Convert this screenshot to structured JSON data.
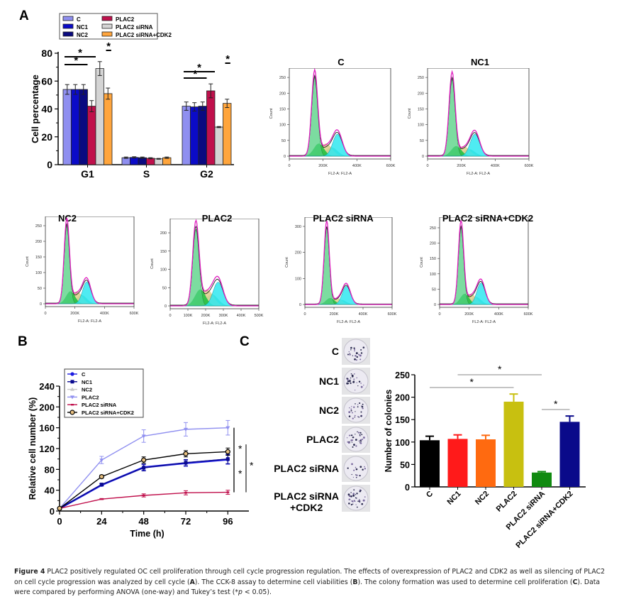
{
  "panels": {
    "A": "A",
    "B": "B",
    "C": "C"
  },
  "chart_data": [
    {
      "id": "A-bar",
      "type": "bar",
      "title": "",
      "xlabel": "",
      "ylabel": "Cell percentage",
      "ylim": [
        0,
        80
      ],
      "yticks": [
        0,
        20,
        40,
        60,
        80
      ],
      "categories": [
        "G1",
        "S",
        "G2"
      ],
      "legend_position": "top-left",
      "series": [
        {
          "name": "C",
          "color": "#8f8ff0",
          "values": [
            54,
            5,
            42
          ],
          "errors": [
            3.5,
            0.5,
            3
          ]
        },
        {
          "name": "NC1",
          "color": "#0b0bc8",
          "values": [
            54,
            5.2,
            41.5
          ],
          "errors": [
            3.5,
            0.5,
            3
          ]
        },
        {
          "name": "NC2",
          "color": "#0a0a80",
          "values": [
            54,
            5,
            42
          ],
          "errors": [
            3.5,
            0.5,
            3
          ]
        },
        {
          "name": "PLAC2",
          "color": "#c0104c",
          "values": [
            42,
            4.6,
            53
          ],
          "errors": [
            4,
            0.4,
            5
          ]
        },
        {
          "name": "PLAC2 siRNA",
          "color": "#d4d4d4",
          "values": [
            69,
            4.2,
            27
          ],
          "errors": [
            5,
            0.3,
            0.4
          ]
        },
        {
          "name": "PLAC2 siRNA+CDK2",
          "color": "#ffa53c",
          "values": [
            51,
            5,
            44
          ],
          "errors": [
            4,
            0.5,
            3
          ]
        }
      ],
      "significance": [
        {
          "category": "G1",
          "from": "C",
          "to": "PLAC2",
          "label": "*"
        },
        {
          "category": "G1",
          "from": "C",
          "to": "PLAC2 siRNA",
          "label": "*"
        },
        {
          "category": "G1",
          "from": "PLAC2 siRNA+CDK2",
          "to": "PLAC2 siRNA+CDK2",
          "label": "*"
        },
        {
          "category": "G2",
          "from": "C",
          "to": "PLAC2",
          "label": "*"
        },
        {
          "category": "G2",
          "from": "C",
          "to": "PLAC2 siRNA",
          "label": "*"
        },
        {
          "category": "G2",
          "from": "PLAC2 siRNA+CDK2",
          "to": "PLAC2 siRNA+CDK2",
          "label": "*"
        }
      ]
    },
    {
      "id": "A-flow",
      "type": "area",
      "xlabel": "FL2-A: FL2-A",
      "ylabel": "Count",
      "xlim": [
        0,
        600000
      ],
      "histograms": [
        {
          "title": "C",
          "xticks": [
            "0",
            "200K",
            "400K",
            "600K"
          ],
          "yticks": [
            "0",
            "50",
            "100",
            "150",
            "200",
            "250"
          ],
          "ymax": 275,
          "g1_peak": 250,
          "g1_pos": 150000,
          "g2_peak": 70,
          "g2_pos": 285000,
          "s_height": 40
        },
        {
          "title": "NC1",
          "xticks": [
            "0",
            "200K",
            "400K",
            "600K"
          ],
          "yticks": [
            "0",
            "50",
            "100",
            "150",
            "200",
            "250"
          ],
          "ymax": 275,
          "g1_peak": 245,
          "g1_pos": 145000,
          "g2_peak": 70,
          "g2_pos": 280000,
          "s_height": 32
        },
        {
          "title": "NC2",
          "xticks": [
            "0",
            "200K",
            "400K",
            "600K"
          ],
          "yticks": [
            "0",
            "50",
            "100",
            "150",
            "200",
            "250"
          ],
          "ymax": 275,
          "g1_peak": 250,
          "g1_pos": 145000,
          "g2_peak": 70,
          "g2_pos": 280000,
          "s_height": 40
        },
        {
          "title": "PLAC2",
          "xticks": [
            "0",
            "100K",
            "200K",
            "300K",
            "400K",
            "500K"
          ],
          "yticks": [
            "0",
            "50",
            "100",
            "150",
            "200"
          ],
          "ymax": 235,
          "xmax": 500000,
          "g1_peak": 210,
          "g1_pos": 145000,
          "g2_peak": 65,
          "g2_pos": 270000,
          "s_height": 45
        },
        {
          "title": "PLAC2 siRNA",
          "xticks": [
            "0",
            "200K",
            "400K",
            "600K"
          ],
          "yticks": [
            "0",
            "100",
            "200",
            "300"
          ],
          "ymax": 330,
          "g1_peak": 295,
          "g1_pos": 150000,
          "g2_peak": 70,
          "g2_pos": 285000,
          "s_height": 25
        },
        {
          "title": "PLAC2 siRNA+CDK2",
          "xticks": [
            "0",
            "200K",
            "400K",
            "600K"
          ],
          "yticks": [
            "0",
            "50",
            "100",
            "150",
            "200",
            "250"
          ],
          "ymax": 280,
          "g1_peak": 250,
          "g1_pos": 145000,
          "g2_peak": 70,
          "g2_pos": 280000,
          "s_height": 35
        }
      ]
    },
    {
      "id": "B-line",
      "type": "line",
      "title": "",
      "xlabel": "Time (h)",
      "ylabel": "Relative cell number (%)",
      "x": [
        0,
        24,
        48,
        72,
        96
      ],
      "xlim": [
        0,
        108
      ],
      "ylim": [
        0,
        240
      ],
      "yticks": [
        0,
        40,
        80,
        120,
        160,
        200,
        240
      ],
      "legend_position": "top-left",
      "series": [
        {
          "name": "C",
          "color": "#1a1ae0",
          "marker": "circle",
          "values": [
            5,
            50,
            84,
            92,
            99
          ],
          "errors": [
            1,
            2,
            6,
            6,
            9
          ]
        },
        {
          "name": "NC1",
          "color": "#0a0a90",
          "marker": "square",
          "values": [
            5,
            51,
            83,
            93,
            100
          ],
          "errors": [
            1,
            2,
            6,
            6,
            9
          ]
        },
        {
          "name": "NC2",
          "color": "#c8c8c8",
          "marker": "triangle",
          "values": [
            5,
            50,
            84,
            92,
            99
          ],
          "errors": [
            1,
            2,
            6,
            6,
            9
          ]
        },
        {
          "name": "PLAC2",
          "color": "#9090f0",
          "marker": "triangle-down",
          "values": [
            5,
            98,
            144,
            157,
            160
          ],
          "errors": [
            1,
            7,
            12,
            13,
            14
          ]
        },
        {
          "name": "PLAC2 siRNA",
          "color": "#c0104c",
          "marker": "dash",
          "values": [
            5,
            23,
            30,
            35,
            36
          ],
          "errors": [
            1,
            1,
            3,
            4,
            4
          ]
        },
        {
          "name": "PLAC2 siRNA+CDK2",
          "color": "#000000",
          "marker": "open-circle",
          "values": [
            5,
            66,
            98,
            110,
            114
          ],
          "errors": [
            1,
            3,
            6,
            6,
            7
          ]
        }
      ],
      "significance": [
        {
          "from": "PLAC2",
          "to": "PLAC2 siRNA+CDK2",
          "label": "*"
        },
        {
          "from": "PLAC2 siRNA+CDK2",
          "to": "PLAC2 siRNA",
          "label": "*"
        },
        {
          "from": "C",
          "to": "PLAC2 siRNA",
          "label": "*"
        }
      ]
    },
    {
      "id": "C-bar",
      "type": "bar",
      "title": "",
      "xlabel": "",
      "ylabel": "Number of colonies",
      "ylim": [
        0,
        250
      ],
      "yticks": [
        0,
        50,
        100,
        150,
        200,
        250
      ],
      "categories": [
        "C",
        "NC1",
        "NC2",
        "PLAC2",
        "PLAC2 siRNA",
        "PLAC2 siRNA+CDK2"
      ],
      "values": [
        104,
        107,
        106,
        190,
        32,
        145
      ],
      "errors": [
        9,
        9,
        9,
        17,
        2,
        13
      ],
      "colors": [
        "#000000",
        "#ff1a1a",
        "#ff6a10",
        "#c8c010",
        "#108a10",
        "#0a0a8a"
      ],
      "significance": [
        {
          "from": "C",
          "to": "PLAC2",
          "label": "*"
        },
        {
          "from": "NC1",
          "to": "PLAC2 siRNA",
          "label": "*"
        },
        {
          "from": "PLAC2 siRNA",
          "to": "PLAC2 siRNA+CDK2",
          "label": "*"
        }
      ]
    }
  ],
  "colony_dishes": {
    "labels": [
      "C",
      "NC1",
      "NC2",
      "PLAC2",
      "PLAC2 siRNA",
      "PLAC2 siRNA\n+CDK2"
    ],
    "counts": [
      22,
      26,
      26,
      34,
      16,
      34
    ]
  },
  "caption": {
    "label": "Figure 4",
    "text_1": " PLAC2 positively regulated OC cell proliferation through cell cycle progression regulation. The effects of overexpression of PLAC2 and CDK2 as well as silencing of PLAC2 on cell cycle progression was analyzed by cell cycle (",
    "ref_a": "A",
    "text_2": "). The CCK-8 assay to determine cell viabilities (",
    "ref_b": "B",
    "text_3": "). The colony formation was used to determine cell proliferation (",
    "ref_c": "C",
    "text_4": "). Data were compared by performing ANOVA (one-way) and Tukey’s test (*",
    "p": "p",
    "text_5": " < 0.05)."
  }
}
